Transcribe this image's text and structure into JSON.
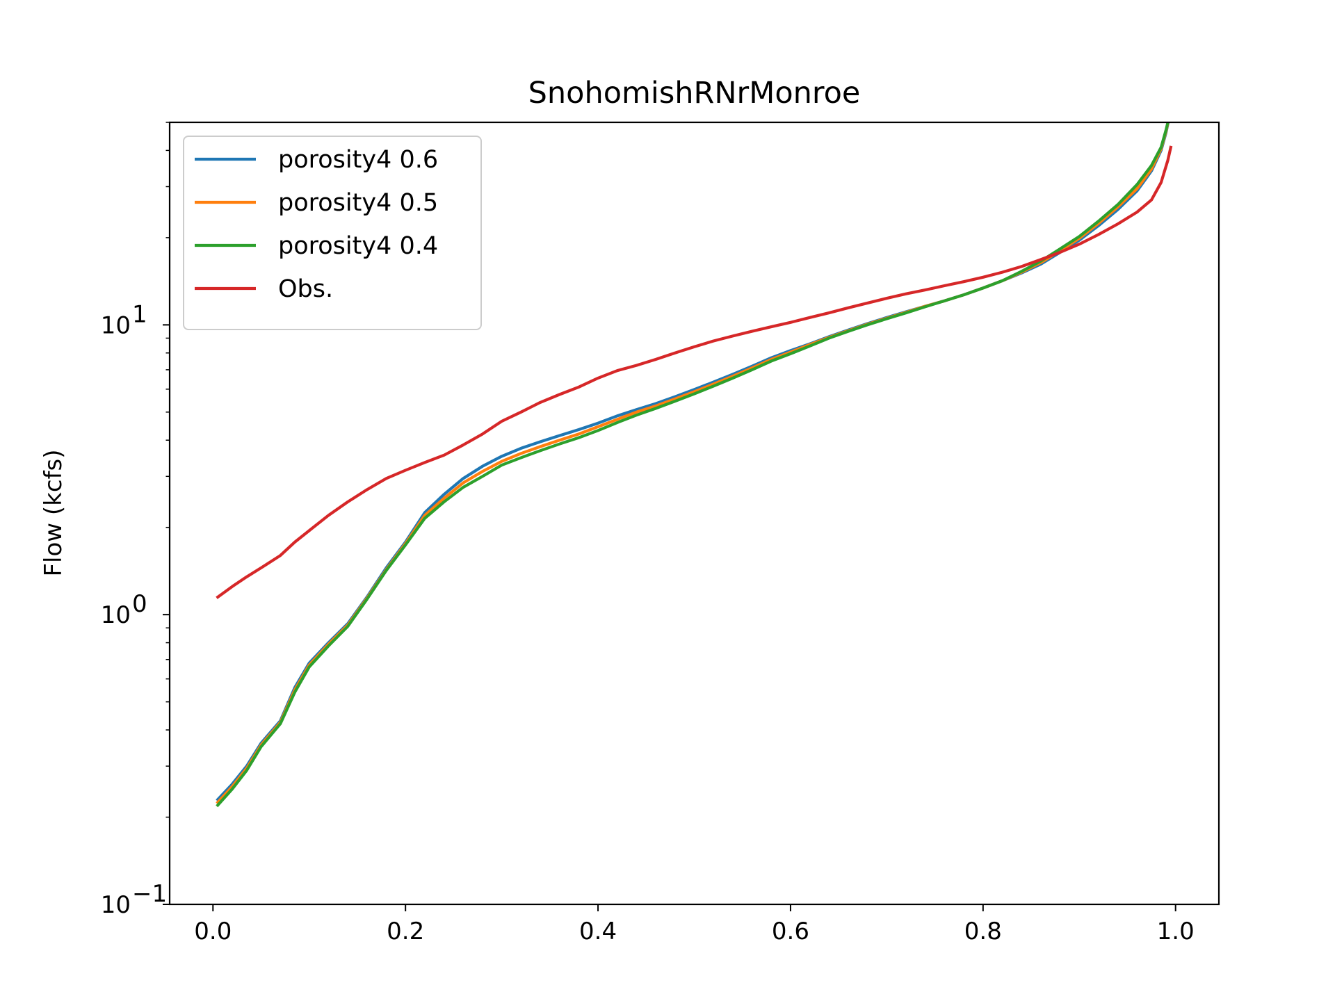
{
  "chart_data": {
    "type": "line",
    "title": "SnohomishRNrMonroe",
    "xlabel": "",
    "ylabel": "Flow (kcfs)",
    "xlim": [
      -0.045,
      1.045
    ],
    "ylim": [
      0.1,
      50
    ],
    "yscale": "log",
    "x_ticks": [
      "0.0",
      "0.2",
      "0.4",
      "0.6",
      "0.8",
      "1.0"
    ],
    "y_ticks": [
      {
        "base": "10",
        "exp": "−1"
      },
      {
        "base": "10",
        "exp": "0"
      },
      {
        "base": "10",
        "exp": "1"
      }
    ],
    "legend_placement": "upper-left",
    "series": [
      {
        "name": "porosity4 0.6",
        "color": "#1f77b4",
        "points": [
          [
            0.005,
            0.23
          ],
          [
            0.02,
            0.26
          ],
          [
            0.035,
            0.3
          ],
          [
            0.05,
            0.36
          ],
          [
            0.07,
            0.43
          ],
          [
            0.085,
            0.56
          ],
          [
            0.1,
            0.68
          ],
          [
            0.12,
            0.8
          ],
          [
            0.14,
            0.93
          ],
          [
            0.16,
            1.15
          ],
          [
            0.18,
            1.45
          ],
          [
            0.2,
            1.78
          ],
          [
            0.22,
            2.25
          ],
          [
            0.24,
            2.6
          ],
          [
            0.26,
            2.95
          ],
          [
            0.28,
            3.25
          ],
          [
            0.3,
            3.52
          ],
          [
            0.32,
            3.75
          ],
          [
            0.34,
            3.95
          ],
          [
            0.36,
            4.15
          ],
          [
            0.38,
            4.35
          ],
          [
            0.4,
            4.58
          ],
          [
            0.42,
            4.85
          ],
          [
            0.44,
            5.1
          ],
          [
            0.46,
            5.35
          ],
          [
            0.48,
            5.65
          ],
          [
            0.5,
            5.98
          ],
          [
            0.52,
            6.35
          ],
          [
            0.54,
            6.75
          ],
          [
            0.56,
            7.2
          ],
          [
            0.58,
            7.7
          ],
          [
            0.6,
            8.15
          ],
          [
            0.62,
            8.6
          ],
          [
            0.64,
            9.1
          ],
          [
            0.66,
            9.6
          ],
          [
            0.68,
            10.1
          ],
          [
            0.7,
            10.6
          ],
          [
            0.72,
            11.1
          ],
          [
            0.74,
            11.6
          ],
          [
            0.76,
            12.1
          ],
          [
            0.78,
            12.7
          ],
          [
            0.8,
            13.4
          ],
          [
            0.82,
            14.2
          ],
          [
            0.84,
            15.1
          ],
          [
            0.86,
            16.2
          ],
          [
            0.88,
            17.8
          ],
          [
            0.9,
            19.6
          ],
          [
            0.92,
            22.0
          ],
          [
            0.94,
            25.0
          ],
          [
            0.96,
            29.0
          ],
          [
            0.975,
            34.0
          ],
          [
            0.985,
            40.0
          ],
          [
            0.99,
            46.0
          ],
          [
            0.995,
            55.0
          ]
        ]
      },
      {
        "name": "porosity4 0.5",
        "color": "#ff7f0e",
        "points": [
          [
            0.005,
            0.225
          ],
          [
            0.02,
            0.255
          ],
          [
            0.035,
            0.295
          ],
          [
            0.05,
            0.355
          ],
          [
            0.07,
            0.425
          ],
          [
            0.085,
            0.55
          ],
          [
            0.1,
            0.67
          ],
          [
            0.12,
            0.79
          ],
          [
            0.14,
            0.92
          ],
          [
            0.16,
            1.14
          ],
          [
            0.18,
            1.43
          ],
          [
            0.2,
            1.76
          ],
          [
            0.22,
            2.2
          ],
          [
            0.24,
            2.52
          ],
          [
            0.26,
            2.85
          ],
          [
            0.28,
            3.12
          ],
          [
            0.3,
            3.38
          ],
          [
            0.32,
            3.6
          ],
          [
            0.34,
            3.8
          ],
          [
            0.36,
            4.0
          ],
          [
            0.38,
            4.2
          ],
          [
            0.4,
            4.45
          ],
          [
            0.42,
            4.72
          ],
          [
            0.44,
            5.0
          ],
          [
            0.46,
            5.25
          ],
          [
            0.48,
            5.55
          ],
          [
            0.5,
            5.88
          ],
          [
            0.52,
            6.25
          ],
          [
            0.54,
            6.65
          ],
          [
            0.56,
            7.1
          ],
          [
            0.58,
            7.6
          ],
          [
            0.6,
            8.05
          ],
          [
            0.62,
            8.55
          ],
          [
            0.64,
            9.05
          ],
          [
            0.66,
            9.55
          ],
          [
            0.68,
            10.05
          ],
          [
            0.7,
            10.55
          ],
          [
            0.72,
            11.05
          ],
          [
            0.74,
            11.6
          ],
          [
            0.76,
            12.1
          ],
          [
            0.78,
            12.7
          ],
          [
            0.8,
            13.4
          ],
          [
            0.82,
            14.2
          ],
          [
            0.84,
            15.2
          ],
          [
            0.86,
            16.4
          ],
          [
            0.88,
            18.0
          ],
          [
            0.9,
            19.9
          ],
          [
            0.92,
            22.4
          ],
          [
            0.94,
            25.5
          ],
          [
            0.96,
            29.5
          ],
          [
            0.975,
            34.5
          ],
          [
            0.985,
            40.5
          ],
          [
            0.99,
            46.5
          ],
          [
            0.995,
            55.0
          ]
        ]
      },
      {
        "name": "porosity4 0.4",
        "color": "#2ca02c",
        "points": [
          [
            0.005,
            0.22
          ],
          [
            0.02,
            0.25
          ],
          [
            0.035,
            0.29
          ],
          [
            0.05,
            0.35
          ],
          [
            0.07,
            0.42
          ],
          [
            0.085,
            0.54
          ],
          [
            0.1,
            0.66
          ],
          [
            0.12,
            0.78
          ],
          [
            0.14,
            0.91
          ],
          [
            0.16,
            1.13
          ],
          [
            0.18,
            1.42
          ],
          [
            0.2,
            1.74
          ],
          [
            0.22,
            2.15
          ],
          [
            0.24,
            2.45
          ],
          [
            0.26,
            2.75
          ],
          [
            0.28,
            3.0
          ],
          [
            0.3,
            3.28
          ],
          [
            0.32,
            3.48
          ],
          [
            0.34,
            3.68
          ],
          [
            0.36,
            3.88
          ],
          [
            0.38,
            4.08
          ],
          [
            0.4,
            4.32
          ],
          [
            0.42,
            4.6
          ],
          [
            0.44,
            4.88
          ],
          [
            0.46,
            5.15
          ],
          [
            0.48,
            5.45
          ],
          [
            0.5,
            5.78
          ],
          [
            0.52,
            6.15
          ],
          [
            0.54,
            6.55
          ],
          [
            0.56,
            7.0
          ],
          [
            0.58,
            7.5
          ],
          [
            0.6,
            7.95
          ],
          [
            0.62,
            8.45
          ],
          [
            0.64,
            9.0
          ],
          [
            0.66,
            9.5
          ],
          [
            0.68,
            10.0
          ],
          [
            0.7,
            10.5
          ],
          [
            0.72,
            11.0
          ],
          [
            0.74,
            11.55
          ],
          [
            0.76,
            12.1
          ],
          [
            0.78,
            12.7
          ],
          [
            0.8,
            13.4
          ],
          [
            0.82,
            14.2
          ],
          [
            0.84,
            15.3
          ],
          [
            0.86,
            16.6
          ],
          [
            0.88,
            18.3
          ],
          [
            0.9,
            20.2
          ],
          [
            0.92,
            22.8
          ],
          [
            0.94,
            26.0
          ],
          [
            0.96,
            30.5
          ],
          [
            0.975,
            35.5
          ],
          [
            0.985,
            41.0
          ],
          [
            0.99,
            47.0
          ],
          [
            0.995,
            55.0
          ]
        ]
      },
      {
        "name": "Obs.",
        "color": "#d62728",
        "points": [
          [
            0.005,
            1.15
          ],
          [
            0.02,
            1.25
          ],
          [
            0.035,
            1.35
          ],
          [
            0.05,
            1.45
          ],
          [
            0.07,
            1.6
          ],
          [
            0.085,
            1.78
          ],
          [
            0.1,
            1.95
          ],
          [
            0.12,
            2.2
          ],
          [
            0.14,
            2.45
          ],
          [
            0.16,
            2.7
          ],
          [
            0.18,
            2.95
          ],
          [
            0.2,
            3.15
          ],
          [
            0.22,
            3.35
          ],
          [
            0.24,
            3.55
          ],
          [
            0.26,
            3.85
          ],
          [
            0.28,
            4.2
          ],
          [
            0.3,
            4.65
          ],
          [
            0.32,
            5.0
          ],
          [
            0.34,
            5.4
          ],
          [
            0.36,
            5.75
          ],
          [
            0.38,
            6.1
          ],
          [
            0.4,
            6.55
          ],
          [
            0.42,
            6.95
          ],
          [
            0.44,
            7.25
          ],
          [
            0.46,
            7.6
          ],
          [
            0.48,
            8.0
          ],
          [
            0.5,
            8.4
          ],
          [
            0.52,
            8.8
          ],
          [
            0.54,
            9.15
          ],
          [
            0.56,
            9.5
          ],
          [
            0.58,
            9.85
          ],
          [
            0.6,
            10.2
          ],
          [
            0.62,
            10.6
          ],
          [
            0.64,
            11.0
          ],
          [
            0.66,
            11.45
          ],
          [
            0.68,
            11.9
          ],
          [
            0.7,
            12.35
          ],
          [
            0.72,
            12.8
          ],
          [
            0.74,
            13.2
          ],
          [
            0.76,
            13.65
          ],
          [
            0.78,
            14.1
          ],
          [
            0.8,
            14.6
          ],
          [
            0.82,
            15.2
          ],
          [
            0.84,
            15.9
          ],
          [
            0.86,
            16.8
          ],
          [
            0.88,
            17.8
          ],
          [
            0.9,
            19.0
          ],
          [
            0.92,
            20.5
          ],
          [
            0.94,
            22.3
          ],
          [
            0.96,
            24.5
          ],
          [
            0.975,
            27.0
          ],
          [
            0.985,
            31.0
          ],
          [
            0.992,
            37.0
          ],
          [
            0.995,
            41.0
          ]
        ]
      }
    ]
  }
}
